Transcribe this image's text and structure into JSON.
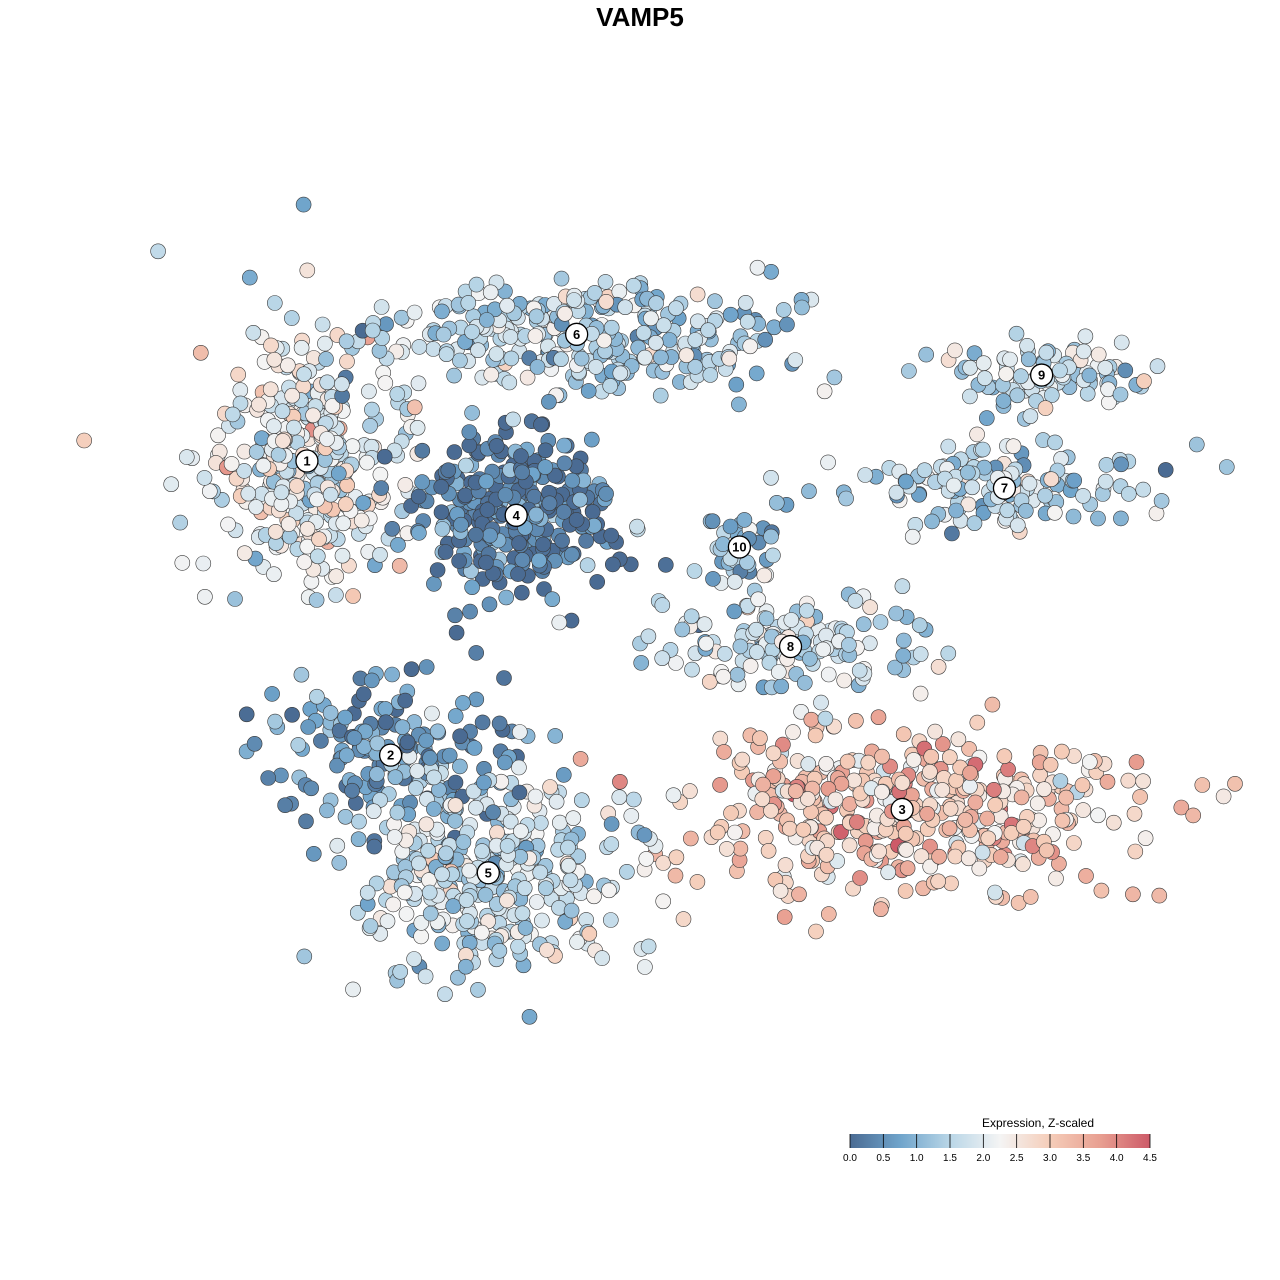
{
  "chart_data": {
    "type": "scatter",
    "title": "VAMP5",
    "legend": {
      "title": "Expression, Z-scaled",
      "placement": "bottom-right",
      "range": [
        0,
        4.5
      ],
      "ticks": [
        "0.0",
        "0.5",
        "1.0",
        "1.5",
        "2.0",
        "2.5",
        "3.0",
        "3.5",
        "4.0",
        "4.5"
      ],
      "colors": [
        "#4a6b93",
        "#6fa4cb",
        "#b9d6e7",
        "#f4f4f4",
        "#f5cdb9",
        "#e89f91",
        "#cd5a68"
      ]
    },
    "axes": {
      "x_visible": false,
      "y_visible": false,
      "xlim": [
        0,
        100
      ],
      "ylim": [
        0,
        100
      ]
    },
    "clusters": [
      {
        "label": "1",
        "x": 11.5,
        "y": 69.5,
        "mean_expression": 2.1
      },
      {
        "label": "2",
        "x": 20.5,
        "y": 37.0,
        "mean_expression": 0.6
      },
      {
        "label": "3",
        "x": 75.5,
        "y": 31.0,
        "mean_expression": 3.0
      },
      {
        "label": "4",
        "x": 34.0,
        "y": 63.5,
        "mean_expression": 0.3
      },
      {
        "label": "5",
        "x": 31.0,
        "y": 24.0,
        "mean_expression": 1.6
      },
      {
        "label": "6",
        "x": 40.5,
        "y": 83.5,
        "mean_expression": 1.4
      },
      {
        "label": "7",
        "x": 86.5,
        "y": 66.5,
        "mean_expression": 1.5
      },
      {
        "label": "8",
        "x": 63.5,
        "y": 49.0,
        "mean_expression": 1.6
      },
      {
        "label": "9",
        "x": 90.5,
        "y": 79.0,
        "mean_expression": 1.7
      },
      {
        "label": "10",
        "x": 58.0,
        "y": 60.0,
        "mean_expression": 1.2
      }
    ]
  }
}
